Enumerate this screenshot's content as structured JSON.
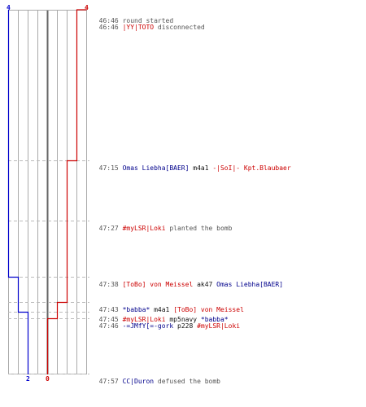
{
  "colors": {
    "team_ct": "#0000cc",
    "team_t": "#cc0000",
    "grid": "#aaaaaa",
    "guide": "#bbbbbb",
    "text": "#555555",
    "ct_text": "#00008b",
    "t_text": "#cc0000"
  },
  "scores": {
    "ct_start": "4",
    "t_start": "4",
    "ct_end": "2",
    "t_end": "0"
  },
  "events": [
    {
      "time": "46:46",
      "parts": [
        {
          "text": "round started",
          "team": "none"
        }
      ]
    },
    {
      "time": "46:46",
      "parts": [
        {
          "text": "|YY|TOTO",
          "team": "t"
        },
        {
          "text": " disconnected",
          "team": "none"
        }
      ]
    },
    {
      "time": "47:15",
      "parts": [
        {
          "text": "Omas Liebha[BAER]",
          "team": "ct"
        },
        {
          "text": " m4a1 ",
          "team": "plain"
        },
        {
          "text": "-|SoI|- Kpt.Blaubaer",
          "team": "t"
        }
      ]
    },
    {
      "time": "47:27",
      "parts": [
        {
          "text": "#myLSR|Loki",
          "team": "t"
        },
        {
          "text": " planted the bomb",
          "team": "none"
        }
      ]
    },
    {
      "time": "47:38",
      "parts": [
        {
          "text": "[ToBo] von Meissel",
          "team": "t"
        },
        {
          "text": " ak47 ",
          "team": "plain"
        },
        {
          "text": "Omas Liebha[BAER]",
          "team": "ct"
        }
      ]
    },
    {
      "time": "47:43",
      "parts": [
        {
          "text": "*babba*",
          "team": "ct"
        },
        {
          "text": " m4a1 ",
          "team": "plain"
        },
        {
          "text": "[ToBo] von Meissel",
          "team": "t"
        }
      ]
    },
    {
      "time": "47:45",
      "parts": [
        {
          "text": "#myLSR|Loki",
          "team": "t"
        },
        {
          "text": " mp5navy ",
          "team": "plain"
        },
        {
          "text": "*babba*",
          "team": "ct"
        }
      ]
    },
    {
      "time": "47:46",
      "parts": [
        {
          "text": "-=JMfY[=-gork",
          "team": "ct"
        },
        {
          "text": " p228 ",
          "team": "plain"
        },
        {
          "text": "#myLSR|Loki",
          "team": "t"
        }
      ]
    },
    {
      "time": "47:57",
      "parts": [
        {
          "text": "CC|Duron",
          "team": "ct"
        },
        {
          "text": " defused the bomb",
          "team": "none"
        }
      ]
    }
  ]
}
